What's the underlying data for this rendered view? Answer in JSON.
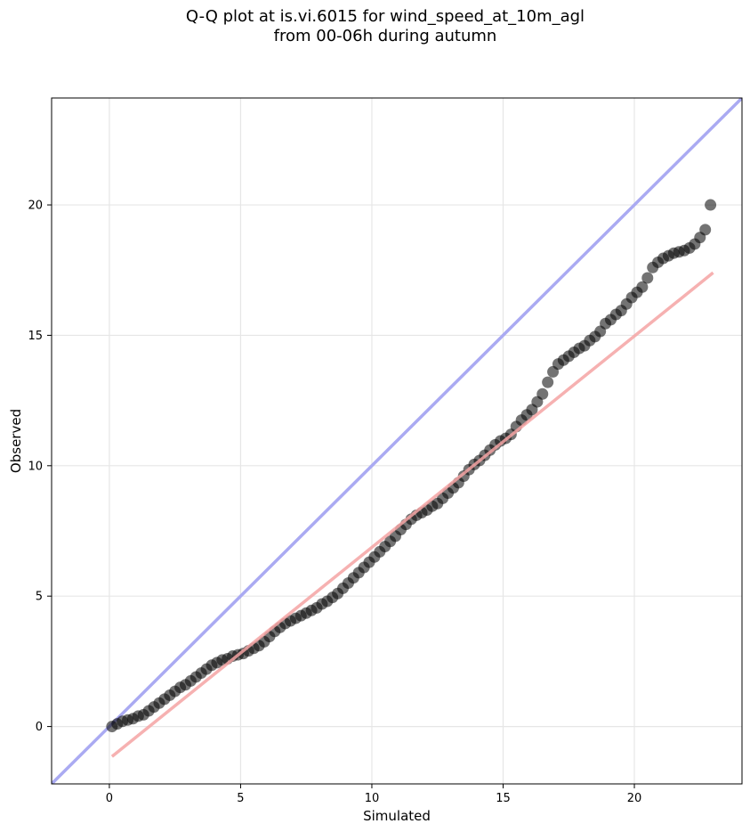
{
  "chart_data": {
    "type": "scatter",
    "title_lines": [
      "Q-Q plot at is.vi.6015 for wind_speed_at_10m_agl",
      "from 00-06h during autumn"
    ],
    "xlabel": "Simulated",
    "ylabel": "Observed",
    "xlim": [
      -2.2,
      24.1
    ],
    "ylim": [
      -2.2,
      24.1
    ],
    "xticks": [
      0,
      5,
      10,
      15,
      20
    ],
    "yticks": [
      0,
      5,
      10,
      15,
      20
    ],
    "grid": true,
    "reference_line": {
      "name": "1:1",
      "color": "#aaaaf2",
      "x": [
        -2.2,
        24.1
      ],
      "y": [
        -2.2,
        24.1
      ]
    },
    "fit_line": {
      "color": "#f5a3a3",
      "x": [
        0.1,
        23.0
      ],
      "y": [
        -1.15,
        17.4
      ]
    },
    "point_color": "#000000",
    "points": {
      "x": [
        0.1,
        0.3,
        0.5,
        0.7,
        0.9,
        1.1,
        1.3,
        1.5,
        1.7,
        1.9,
        2.1,
        2.3,
        2.5,
        2.7,
        2.9,
        3.1,
        3.3,
        3.5,
        3.7,
        3.9,
        4.1,
        4.3,
        4.5,
        4.7,
        4.9,
        5.1,
        5.3,
        5.5,
        5.7,
        5.9,
        6.1,
        6.3,
        6.5,
        6.7,
        6.9,
        7.1,
        7.3,
        7.5,
        7.7,
        7.9,
        8.1,
        8.3,
        8.5,
        8.7,
        8.9,
        9.1,
        9.3,
        9.5,
        9.7,
        9.9,
        10.1,
        10.3,
        10.5,
        10.7,
        10.9,
        11.1,
        11.3,
        11.5,
        11.7,
        11.9,
        12.1,
        12.3,
        12.5,
        12.7,
        12.9,
        13.1,
        13.3,
        13.5,
        13.7,
        13.9,
        14.1,
        14.3,
        14.5,
        14.7,
        14.9,
        15.1,
        15.3,
        15.5,
        15.7,
        15.9,
        16.1,
        16.3,
        16.5,
        16.7,
        16.9,
        17.1,
        17.3,
        17.5,
        17.7,
        17.9,
        18.1,
        18.3,
        18.5,
        18.7,
        18.9,
        19.1,
        19.3,
        19.5,
        19.7,
        19.9,
        20.1,
        20.3,
        20.5,
        20.7,
        20.9,
        21.1,
        21.3,
        21.5,
        21.7,
        21.9,
        22.1,
        22.3,
        22.5,
        22.7,
        22.9
      ],
      "y": [
        0.0,
        0.1,
        0.2,
        0.25,
        0.3,
        0.4,
        0.45,
        0.6,
        0.75,
        0.9,
        1.05,
        1.2,
        1.35,
        1.5,
        1.6,
        1.75,
        1.9,
        2.05,
        2.2,
        2.35,
        2.45,
        2.55,
        2.6,
        2.7,
        2.75,
        2.8,
        2.9,
        3.0,
        3.1,
        3.25,
        3.45,
        3.65,
        3.8,
        3.95,
        4.05,
        4.15,
        4.25,
        4.35,
        4.45,
        4.55,
        4.7,
        4.8,
        4.95,
        5.1,
        5.3,
        5.5,
        5.7,
        5.9,
        6.1,
        6.3,
        6.5,
        6.7,
        6.9,
        7.1,
        7.3,
        7.55,
        7.75,
        7.95,
        8.1,
        8.2,
        8.3,
        8.45,
        8.55,
        8.75,
        8.95,
        9.15,
        9.35,
        9.6,
        9.85,
        10.05,
        10.2,
        10.4,
        10.6,
        10.8,
        10.95,
        11.05,
        11.2,
        11.5,
        11.75,
        11.95,
        12.15,
        12.45,
        12.75,
        13.2,
        13.6,
        13.9,
        14.05,
        14.2,
        14.35,
        14.5,
        14.6,
        14.8,
        14.95,
        15.15,
        15.45,
        15.6,
        15.8,
        15.95,
        16.2,
        16.45,
        16.65,
        16.85,
        17.2,
        17.6,
        17.8,
        17.95,
        18.05,
        18.15,
        18.2,
        18.25,
        18.35,
        18.5,
        18.75,
        19.05,
        20.0
      ]
    }
  }
}
